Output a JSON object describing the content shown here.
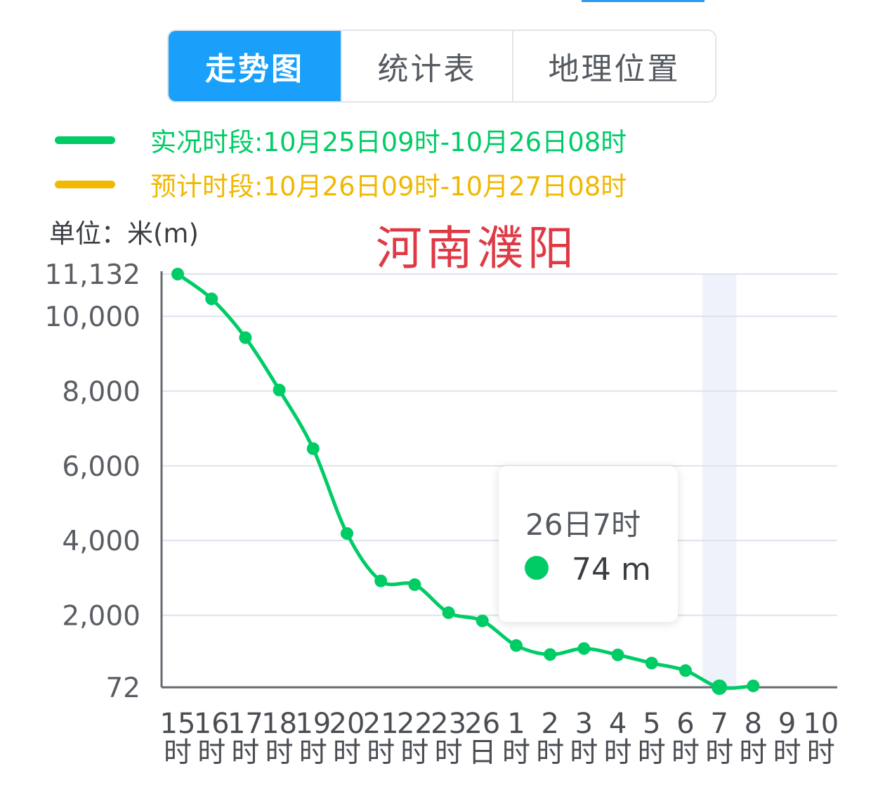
{
  "tabs": [
    {
      "label": "走势图",
      "active": true
    },
    {
      "label": "统计表",
      "active": false
    },
    {
      "label": "地理位置",
      "active": false
    }
  ],
  "legend": [
    {
      "text": "实况时段:10月25日09时-10月26日08时",
      "color": "#00cc66"
    },
    {
      "text": "预计时段:10月26日09时-10月27日08时",
      "color": "#f0b800"
    }
  ],
  "unit_label": "单位：米(m)",
  "watermark": "河南濮阳",
  "tooltip": {
    "title": "26日7时",
    "value": "74 m",
    "color": "#00cc66"
  },
  "colors": {
    "line": "#00cc66",
    "grid": "#dde2ee",
    "axis": "#666a70",
    "highlight": "#eef2fa",
    "active_tab": "#1aa0fa"
  },
  "chart_data": {
    "type": "line",
    "categories": [
      "15时",
      "16时",
      "17时",
      "18时",
      "19时",
      "20时",
      "21时",
      "22时",
      "23时",
      "26日",
      "1时",
      "2时",
      "3时",
      "4时",
      "5时",
      "6时",
      "7时",
      "8时",
      "9时",
      "10时"
    ],
    "category_lines": [
      [
        "15",
        "16",
        "17",
        "18",
        "19",
        "20",
        "21",
        "22",
        "23",
        "26",
        "1",
        "2",
        "3",
        "4",
        "5",
        "6",
        "7",
        "8",
        "9",
        "10"
      ],
      [
        "时",
        "时",
        "时",
        "时",
        "时",
        "时",
        "时",
        "时",
        "时",
        "日",
        "时",
        "时",
        "时",
        "时",
        "时",
        "时",
        "时",
        "时",
        "时",
        "时"
      ]
    ],
    "series": [
      {
        "values": [
          11132,
          10470,
          9430,
          8030,
          6460,
          4190,
          2920,
          2820,
          2070,
          1850,
          1190,
          950,
          1110,
          940,
          720,
          520,
          74,
          110,
          null,
          null
        ]
      }
    ],
    "ylim": [
      72,
      11132
    ],
    "yticks": [
      72,
      2000,
      4000,
      6000,
      8000,
      10000,
      11132
    ],
    "ytick_labels": [
      "72",
      "2,000",
      "4,000",
      "6,000",
      "8,000",
      "10,000",
      "11,132"
    ],
    "highlight_category": "7时",
    "grid": true
  }
}
